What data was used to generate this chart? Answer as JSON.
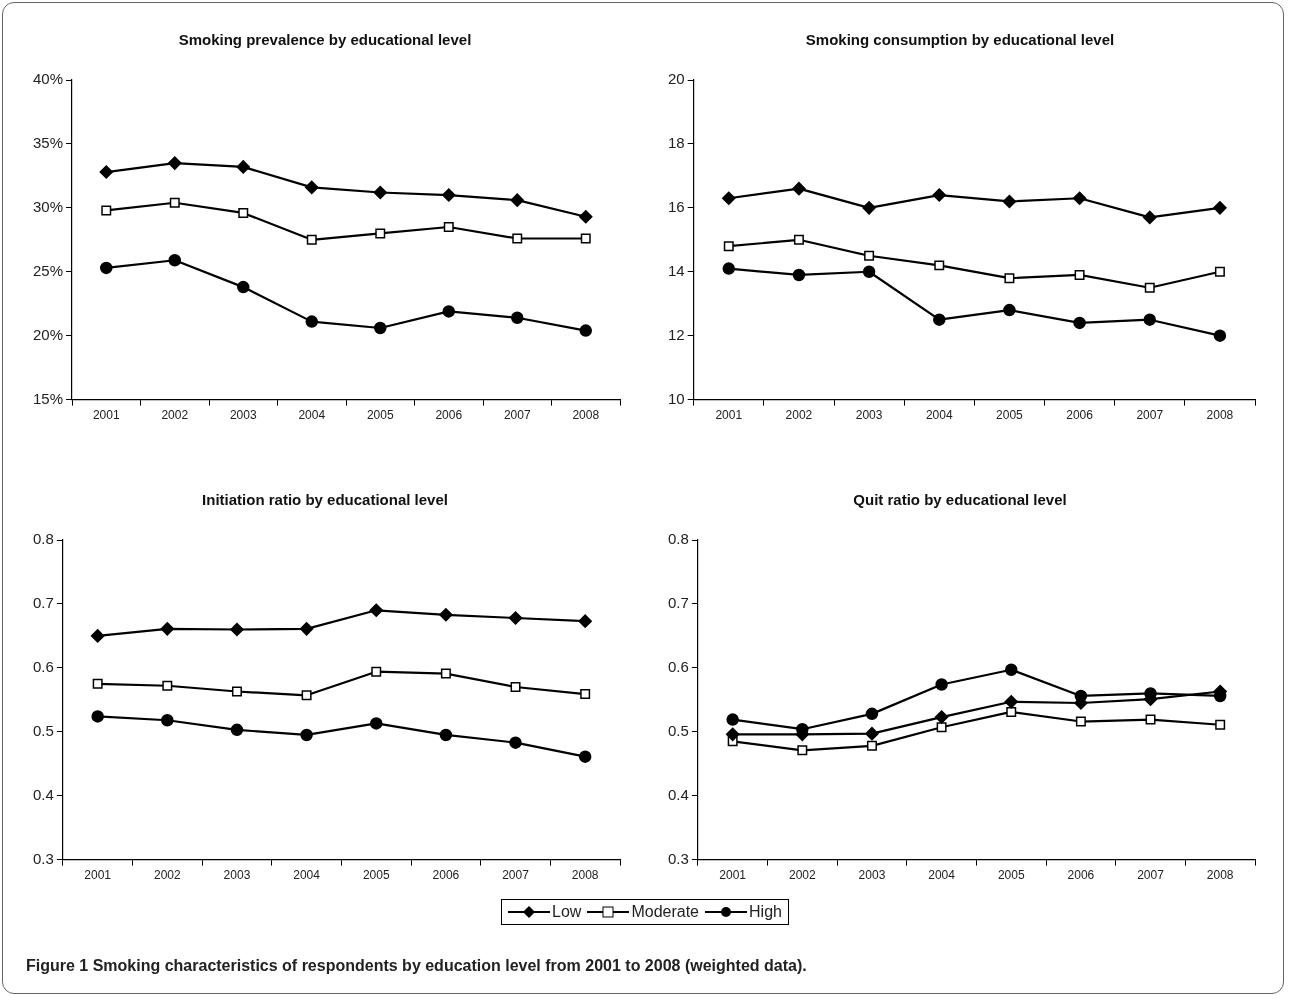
{
  "chart_data": [
    {
      "type": "line",
      "title": "Smoking prevalence by educational level",
      "categories": [
        "2001",
        "2002",
        "2003",
        "2004",
        "2005",
        "2006",
        "2007",
        "2008"
      ],
      "ylim": [
        15,
        40
      ],
      "yticks": [
        {
          "value": 15,
          "label": "15%"
        },
        {
          "value": 20,
          "label": "20%"
        },
        {
          "value": 25,
          "label": "25%"
        },
        {
          "value": 30,
          "label": "30%"
        },
        {
          "value": 35,
          "label": "35%"
        },
        {
          "value": 40,
          "label": "40%"
        }
      ],
      "grid": false,
      "legend": "bottom",
      "series": [
        {
          "name": "Low",
          "color": "#000000",
          "marker": "diamond",
          "values": [
            32.8,
            33.5,
            33.2,
            31.6,
            31.2,
            31.0,
            30.6,
            29.3
          ]
        },
        {
          "name": "Moderate",
          "color": "#000000",
          "marker": "square",
          "values": [
            29.8,
            30.4,
            29.6,
            27.5,
            28.0,
            28.5,
            27.6,
            27.6
          ]
        },
        {
          "name": "High",
          "color": "#000000",
          "marker": "circle",
          "values": [
            25.3,
            25.9,
            23.8,
            21.1,
            20.6,
            21.9,
            21.4,
            20.4
          ]
        }
      ]
    },
    {
      "type": "line",
      "title": "Smoking consumption by educational level",
      "categories": [
        "2001",
        "2002",
        "2003",
        "2004",
        "2005",
        "2006",
        "2007",
        "2008"
      ],
      "ylim": [
        10,
        20
      ],
      "yticks": [
        10,
        12,
        14,
        16,
        18,
        20
      ],
      "grid": false,
      "series": [
        {
          "color": "#000000",
          "marker": "diamond",
          "values": [
            16.3,
            16.6,
            16.0,
            16.4,
            16.2,
            16.3,
            15.7,
            16.0
          ]
        },
        {
          "color": "#000000",
          "marker": "square",
          "values": [
            14.8,
            15.0,
            14.5,
            14.2,
            13.8,
            13.9,
            13.5,
            14.0
          ]
        },
        {
          "color": "#000000",
          "marker": "circle",
          "values": [
            14.1,
            13.9,
            14.0,
            12.5,
            12.8,
            12.4,
            12.5,
            12.0
          ]
        }
      ]
    },
    {
      "type": "line",
      "title": "Initiation ratio by educational level",
      "categories": [
        "2001",
        "2002",
        "2003",
        "2004",
        "2005",
        "2006",
        "2007",
        "2008"
      ],
      "ylim": [
        0.3,
        0.8
      ],
      "yticks": [
        0.3,
        0.4,
        0.5,
        0.6,
        0.7,
        0.8
      ],
      "grid": false,
      "series": [
        {
          "color": "#000000",
          "marker": "diamond",
          "values": [
            0.65,
            0.661,
            0.66,
            0.661,
            0.69,
            0.683,
            0.678,
            0.673
          ]
        },
        {
          "color": "#000000",
          "marker": "square",
          "values": [
            0.575,
            0.572,
            0.563,
            0.557,
            0.594,
            0.591,
            0.57,
            0.559
          ]
        },
        {
          "color": "#000000",
          "marker": "circle",
          "values": [
            0.524,
            0.518,
            0.503,
            0.495,
            0.513,
            0.495,
            0.483,
            0.461
          ]
        }
      ]
    },
    {
      "type": "line",
      "title": "Quit ratio by educational level",
      "categories": [
        "2001",
        "2002",
        "2003",
        "2004",
        "2005",
        "2006",
        "2007",
        "2008"
      ],
      "ylim": [
        0.3,
        0.8
      ],
      "yticks": [
        0.3,
        0.4,
        0.5,
        0.6,
        0.7,
        0.8
      ],
      "grid": false,
      "annotations": [
        "Figure 1 Smoking characteristics of respondents by education level from 2001 to 2008 (weighted data)."
      ],
      "series": [
        {
          "color": "#000000",
          "marker": "diamond",
          "values": [
            0.496,
            0.496,
            0.497,
            0.523,
            0.547,
            0.545,
            0.551,
            0.563
          ]
        },
        {
          "color": "#000000",
          "marker": "square",
          "values": [
            0.485,
            0.471,
            0.478,
            0.507,
            0.531,
            0.516,
            0.519,
            0.511
          ]
        },
        {
          "color": "#000000",
          "marker": "circle",
          "values": [
            0.519,
            0.504,
            0.528,
            0.574,
            0.597,
            0.556,
            0.56,
            0.556
          ]
        }
      ]
    }
  ]
}
